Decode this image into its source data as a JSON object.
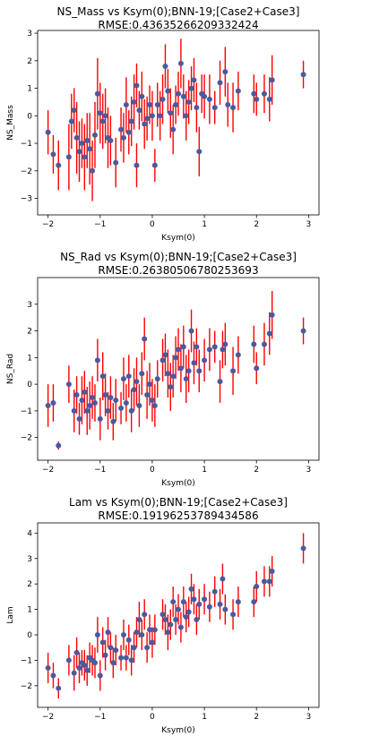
{
  "chart_data": [
    {
      "type": "scatter",
      "title": "NS_Mass vs Ksym(0);BNN-19;[Case2+Case3]",
      "subtitle": "RMSE:0.43635266209332424",
      "xlabel": "Ksym(0)",
      "ylabel": "NS_Mass",
      "xlim": [
        -2.2,
        3.2
      ],
      "ylim": [
        -3.6,
        3.1
      ],
      "xticks": [
        -2,
        -1,
        0,
        1,
        2,
        3
      ],
      "yticks": [
        -3,
        -2,
        -1,
        0,
        1,
        2,
        3
      ],
      "grid": false,
      "legend": "none",
      "colors": {
        "marker": "#4a5a9e",
        "errorbar": "#ff0000"
      },
      "series": [
        {
          "points": [
            [
              -2.0,
              -0.6,
              0.8
            ],
            [
              -1.9,
              -1.4,
              0.7
            ],
            [
              -1.8,
              -1.8,
              0.9
            ],
            [
              -1.6,
              -1.5,
              1.2
            ],
            [
              -1.55,
              -0.2,
              1.0
            ],
            [
              -1.5,
              0.2,
              0.8
            ],
            [
              -1.45,
              -0.8,
              1.3
            ],
            [
              -1.4,
              -1.3,
              1.1
            ],
            [
              -1.35,
              -1.0,
              0.9
            ],
            [
              -1.3,
              -1.5,
              1.2
            ],
            [
              -1.25,
              -0.9,
              1.0
            ],
            [
              -1.2,
              -1.2,
              1.3
            ],
            [
              -1.15,
              -2.0,
              1.1
            ],
            [
              -1.1,
              -0.7,
              1.2
            ],
            [
              -1.05,
              0.8,
              1.3
            ],
            [
              -1.0,
              0.1,
              1.1
            ],
            [
              -0.95,
              -0.2,
              1.0
            ],
            [
              -0.9,
              0.0,
              1.0
            ],
            [
              -0.85,
              -0.8,
              1.1
            ],
            [
              -0.8,
              -0.9,
              0.9
            ],
            [
              -0.7,
              -1.7,
              0.9
            ],
            [
              -0.6,
              -0.5,
              0.8
            ],
            [
              -0.55,
              -0.8,
              0.9
            ],
            [
              -0.5,
              0.4,
              1.0
            ],
            [
              -0.45,
              -0.6,
              0.8
            ],
            [
              -0.4,
              -0.2,
              0.9
            ],
            [
              -0.35,
              0.5,
              1.0
            ],
            [
              -0.3,
              1.1,
              0.8
            ],
            [
              -0.3,
              -1.8,
              0.8
            ],
            [
              -0.25,
              0.2,
              0.7
            ],
            [
              -0.2,
              0.7,
              0.9
            ],
            [
              -0.15,
              -0.3,
              0.9
            ],
            [
              -0.1,
              -0.1,
              0.8
            ],
            [
              -0.05,
              0.4,
              0.7
            ],
            [
              0.0,
              0.0,
              0.9
            ],
            [
              0.05,
              -1.8,
              0.6
            ],
            [
              0.1,
              0.4,
              0.8
            ],
            [
              0.15,
              0.0,
              0.9
            ],
            [
              0.2,
              0.6,
              0.9
            ],
            [
              0.25,
              1.8,
              0.8
            ],
            [
              0.3,
              0.9,
              0.8
            ],
            [
              0.35,
              0.1,
              0.9
            ],
            [
              0.4,
              -0.5,
              0.9
            ],
            [
              0.45,
              0.4,
              0.7
            ],
            [
              0.5,
              0.8,
              0.8
            ],
            [
              0.55,
              1.9,
              0.9
            ],
            [
              0.6,
              0.7,
              0.8
            ],
            [
              0.65,
              0.0,
              0.9
            ],
            [
              0.7,
              0.5,
              0.8
            ],
            [
              0.75,
              1.0,
              0.8
            ],
            [
              0.8,
              1.3,
              0.8
            ],
            [
              0.85,
              0.3,
              0.9
            ],
            [
              0.9,
              -1.3,
              0.9
            ],
            [
              0.95,
              0.8,
              0.7
            ],
            [
              1.0,
              0.7,
              0.8
            ],
            [
              1.1,
              0.6,
              0.9
            ],
            [
              1.2,
              0.3,
              0.6
            ],
            [
              1.3,
              1.2,
              0.8
            ],
            [
              1.4,
              1.6,
              0.9
            ],
            [
              1.45,
              0.4,
              0.8
            ],
            [
              1.55,
              0.3,
              0.9
            ],
            [
              1.65,
              0.9,
              0.7
            ],
            [
              1.95,
              0.8,
              0.7
            ],
            [
              2.0,
              0.6,
              0.6
            ],
            [
              2.15,
              0.8,
              0.7
            ],
            [
              2.25,
              0.6,
              0.8
            ],
            [
              2.3,
              1.3,
              0.9
            ],
            [
              2.9,
              1.5,
              0.5
            ]
          ]
        }
      ]
    },
    {
      "type": "scatter",
      "title": "NS_Rad vs Ksym(0);BNN-19;[Case2+Case3]",
      "subtitle": "RMSE:0.26380506780253693",
      "xlabel": "Ksym(0)",
      "ylabel": "NS_Rad",
      "xlim": [
        -2.2,
        3.2
      ],
      "ylim": [
        -2.85,
        4.0
      ],
      "xticks": [
        -2,
        -1,
        0,
        1,
        2,
        3
      ],
      "yticks": [
        -2,
        -1,
        0,
        1,
        2,
        3
      ],
      "grid": false,
      "legend": "none",
      "colors": {
        "marker": "#4a5a9e",
        "errorbar": "#ff0000"
      },
      "series": [
        {
          "points": [
            [
              -2.0,
              -0.8,
              0.8
            ],
            [
              -1.9,
              -0.7,
              0.7
            ],
            [
              -1.8,
              -2.3,
              0.15
            ],
            [
              -1.6,
              0.0,
              0.7
            ],
            [
              -1.5,
              -1.0,
              0.8
            ],
            [
              -1.45,
              -0.4,
              0.7
            ],
            [
              -1.4,
              -1.3,
              0.6
            ],
            [
              -1.35,
              -0.6,
              0.9
            ],
            [
              -1.3,
              -0.3,
              0.8
            ],
            [
              -1.25,
              -1.0,
              0.9
            ],
            [
              -1.2,
              -0.8,
              0.9
            ],
            [
              -1.15,
              -0.5,
              0.8
            ],
            [
              -1.1,
              -0.7,
              0.7
            ],
            [
              -1.05,
              0.9,
              0.8
            ],
            [
              -1.0,
              -1.3,
              0.8
            ],
            [
              -0.95,
              0.3,
              0.9
            ],
            [
              -0.9,
              -0.4,
              0.8
            ],
            [
              -0.85,
              -1.0,
              0.7
            ],
            [
              -0.8,
              -0.5,
              0.8
            ],
            [
              -0.75,
              -1.4,
              0.7
            ],
            [
              -0.7,
              -0.6,
              0.8
            ],
            [
              -0.6,
              -0.9,
              0.6
            ],
            [
              -0.55,
              0.2,
              0.8
            ],
            [
              -0.5,
              -0.7,
              0.7
            ],
            [
              -0.45,
              0.3,
              0.8
            ],
            [
              -0.4,
              -1.0,
              0.8
            ],
            [
              -0.35,
              -0.2,
              0.8
            ],
            [
              -0.3,
              0.1,
              0.9
            ],
            [
              -0.25,
              -0.8,
              0.8
            ],
            [
              -0.2,
              0.4,
              0.8
            ],
            [
              -0.15,
              1.7,
              0.8
            ],
            [
              -0.1,
              -0.4,
              0.9
            ],
            [
              -0.05,
              0.0,
              0.8
            ],
            [
              0.0,
              -0.6,
              0.8
            ],
            [
              0.05,
              -0.8,
              0.8
            ],
            [
              0.1,
              0.2,
              0.7
            ],
            [
              0.2,
              0.9,
              0.8
            ],
            [
              0.25,
              1.1,
              0.8
            ],
            [
              0.3,
              0.4,
              0.9
            ],
            [
              0.35,
              -0.1,
              0.9
            ],
            [
              0.4,
              0.3,
              0.8
            ],
            [
              0.45,
              1.0,
              0.8
            ],
            [
              0.5,
              1.3,
              0.8
            ],
            [
              0.55,
              0.6,
              0.9
            ],
            [
              0.6,
              1.4,
              0.8
            ],
            [
              0.65,
              0.2,
              0.9
            ],
            [
              0.7,
              0.5,
              0.8
            ],
            [
              0.75,
              2.0,
              0.8
            ],
            [
              0.8,
              0.8,
              0.8
            ],
            [
              0.85,
              1.4,
              0.7
            ],
            [
              0.9,
              0.5,
              0.8
            ],
            [
              1.0,
              0.9,
              0.8
            ],
            [
              1.1,
              1.3,
              0.8
            ],
            [
              1.2,
              1.4,
              0.6
            ],
            [
              1.3,
              0.1,
              0.8
            ],
            [
              1.35,
              1.3,
              0.7
            ],
            [
              1.4,
              1.5,
              0.8
            ],
            [
              1.55,
              0.5,
              0.9
            ],
            [
              1.65,
              1.1,
              0.7
            ],
            [
              1.95,
              1.5,
              0.7
            ],
            [
              2.0,
              0.6,
              0.6
            ],
            [
              2.15,
              1.5,
              0.8
            ],
            [
              2.25,
              1.9,
              0.8
            ],
            [
              2.3,
              2.6,
              0.9
            ],
            [
              2.9,
              2.0,
              0.5
            ]
          ]
        }
      ]
    },
    {
      "type": "scatter",
      "title": "Lam vs Ksym(0);BNN-19;[Case2+Case3]",
      "subtitle": "RMSE:0.19196253789434586",
      "xlabel": "Ksym(0)",
      "ylabel": "Lam",
      "xlim": [
        -2.2,
        3.2
      ],
      "ylim": [
        -2.85,
        4.4
      ],
      "xticks": [
        -2,
        -1,
        0,
        1,
        2,
        3
      ],
      "yticks": [
        -2,
        -1,
        0,
        1,
        2,
        3,
        4
      ],
      "grid": false,
      "legend": "none",
      "colors": {
        "marker": "#4a5a9e",
        "errorbar": "#ff0000"
      },
      "series": [
        {
          "points": [
            [
              -2.0,
              -1.3,
              0.6
            ],
            [
              -1.9,
              -1.6,
              0.5
            ],
            [
              -1.8,
              -2.1,
              0.4
            ],
            [
              -1.6,
              -1.0,
              0.6
            ],
            [
              -1.5,
              -1.5,
              0.7
            ],
            [
              -1.45,
              -0.7,
              0.6
            ],
            [
              -1.4,
              -1.3,
              0.6
            ],
            [
              -1.35,
              -1.1,
              0.5
            ],
            [
              -1.3,
              -1.2,
              0.6
            ],
            [
              -1.25,
              -1.4,
              0.6
            ],
            [
              -1.2,
              -0.9,
              0.6
            ],
            [
              -1.15,
              -1.0,
              0.6
            ],
            [
              -1.1,
              -1.1,
              0.6
            ],
            [
              -1.05,
              0.0,
              0.7
            ],
            [
              -1.0,
              -1.6,
              0.6
            ],
            [
              -0.95,
              -0.3,
              0.6
            ],
            [
              -0.9,
              -0.8,
              0.6
            ],
            [
              -0.85,
              0.1,
              0.6
            ],
            [
              -0.8,
              -0.5,
              0.6
            ],
            [
              -0.75,
              -1.1,
              0.6
            ],
            [
              -0.7,
              -0.6,
              0.6
            ],
            [
              -0.6,
              -0.9,
              0.5
            ],
            [
              -0.55,
              0.0,
              0.6
            ],
            [
              -0.5,
              -0.9,
              0.5
            ],
            [
              -0.45,
              -0.2,
              0.6
            ],
            [
              -0.4,
              -1.0,
              0.6
            ],
            [
              -0.35,
              -0.5,
              0.6
            ],
            [
              -0.3,
              0.1,
              0.6
            ],
            [
              -0.25,
              0.6,
              0.7
            ],
            [
              -0.2,
              0.0,
              0.6
            ],
            [
              -0.15,
              0.8,
              0.6
            ],
            [
              -0.1,
              -0.5,
              0.6
            ],
            [
              -0.05,
              0.2,
              0.6
            ],
            [
              0.0,
              -0.3,
              0.6
            ],
            [
              0.05,
              0.2,
              0.6
            ],
            [
              0.2,
              0.8,
              0.6
            ],
            [
              0.25,
              0.6,
              0.6
            ],
            [
              0.3,
              0.1,
              0.7
            ],
            [
              0.35,
              0.4,
              0.6
            ],
            [
              0.4,
              1.3,
              0.6
            ],
            [
              0.45,
              0.6,
              0.6
            ],
            [
              0.5,
              1.0,
              0.6
            ],
            [
              0.55,
              0.3,
              0.6
            ],
            [
              0.6,
              1.3,
              0.6
            ],
            [
              0.65,
              0.7,
              0.6
            ],
            [
              0.7,
              0.9,
              0.6
            ],
            [
              0.75,
              1.8,
              0.6
            ],
            [
              0.8,
              1.4,
              0.6
            ],
            [
              0.85,
              0.6,
              0.6
            ],
            [
              0.9,
              1.2,
              0.6
            ],
            [
              1.0,
              1.4,
              0.6
            ],
            [
              1.1,
              1.1,
              0.6
            ],
            [
              1.2,
              1.7,
              0.6
            ],
            [
              1.3,
              1.2,
              0.6
            ],
            [
              1.35,
              2.2,
              0.6
            ],
            [
              1.4,
              1.0,
              0.6
            ],
            [
              1.55,
              0.8,
              0.6
            ],
            [
              1.65,
              1.3,
              0.6
            ],
            [
              1.95,
              1.3,
              0.6
            ],
            [
              2.0,
              1.9,
              0.6
            ],
            [
              2.15,
              2.1,
              0.6
            ],
            [
              2.25,
              2.1,
              0.6
            ],
            [
              2.3,
              2.5,
              0.6
            ],
            [
              2.9,
              3.4,
              0.6
            ]
          ]
        }
      ]
    }
  ]
}
